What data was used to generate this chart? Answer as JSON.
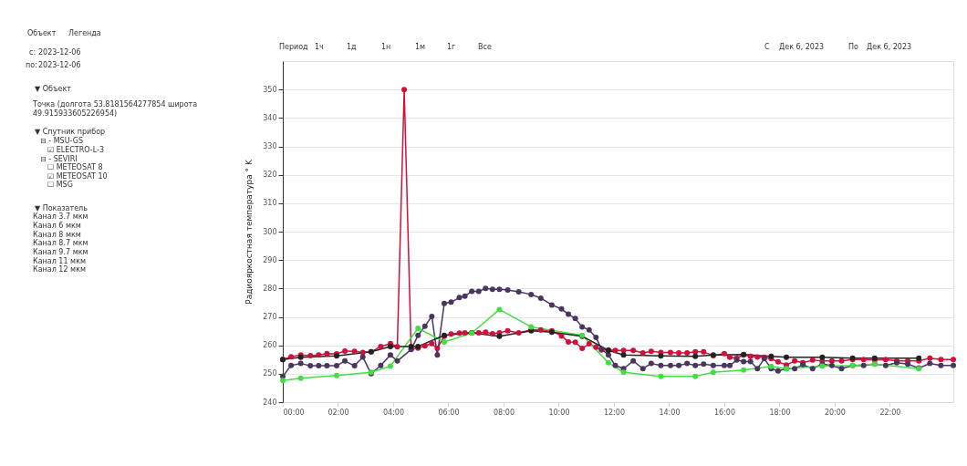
{
  "chart_data": {
    "type": "line",
    "ylabel": "Радиояркостная температура ° K",
    "xlim": [
      0,
      24.3
    ],
    "ylim": [
      240,
      360
    ],
    "xticks": [
      {
        "value": 0,
        "label": "00:00"
      },
      {
        "value": 2,
        "label": "02:00"
      },
      {
        "value": 4,
        "label": "04:00"
      },
      {
        "value": 6,
        "label": "06:00"
      },
      {
        "value": 8,
        "label": "08:00"
      },
      {
        "value": 10,
        "label": "10:00"
      },
      {
        "value": 12,
        "label": "12:00"
      },
      {
        "value": 14,
        "label": "14:00"
      },
      {
        "value": 16,
        "label": "16:00"
      },
      {
        "value": 18,
        "label": "18:00"
      },
      {
        "value": 20,
        "label": "20:00"
      },
      {
        "value": 22,
        "label": "22:00"
      }
    ],
    "yticks": [
      240,
      250,
      260,
      270,
      280,
      290,
      300,
      310,
      320,
      330,
      340,
      350
    ],
    "grid": "y",
    "marker": "circle",
    "line_style": "solid",
    "legend": false,
    "series": [
      {
        "color": "#d0103a",
        "x": [
          0,
          0.3,
          0.65,
          1.0,
          1.3,
          1.6,
          1.95,
          2.25,
          2.6,
          2.9,
          3.2,
          3.55,
          3.9,
          4.15,
          4.4,
          4.65,
          4.9,
          5.15,
          5.4,
          5.6,
          5.85,
          6.1,
          6.4,
          6.6,
          6.85,
          7.1,
          7.35,
          7.6,
          7.85,
          8.15,
          8.55,
          9.0,
          9.35,
          9.75,
          10.1,
          10.35,
          10.6,
          10.85,
          11.1,
          11.35,
          11.55,
          11.8,
          12.05,
          12.35,
          12.7,
          13.05,
          13.35,
          13.7,
          14.05,
          14.35,
          14.65,
          14.95,
          15.25,
          15.6,
          16.0,
          16.2,
          16.45,
          16.7,
          16.95,
          17.2,
          17.45,
          17.7,
          17.95,
          18.25,
          18.55,
          18.85,
          19.2,
          19.55,
          19.9,
          20.25,
          20.65,
          21.05,
          21.45,
          21.85,
          22.25,
          22.65,
          23.05,
          23.45,
          23.85,
          24.3
        ],
        "values": [
          255,
          256,
          256.6,
          256.4,
          256.6,
          257.1,
          257,
          258,
          257.9,
          257.5,
          257.7,
          259.6,
          260.6,
          259.5,
          350,
          258.7,
          259,
          259.8,
          260.6,
          258.9,
          263.2,
          264,
          264.3,
          264.4,
          264.4,
          264.4,
          264.6,
          264.1,
          264.4,
          265.1,
          264.4,
          265.4,
          265.4,
          265.1,
          263.3,
          261.2,
          261.1,
          258.9,
          260.5,
          259.3,
          258.4,
          258.4,
          258.2,
          258.2,
          258.2,
          257.3,
          257.9,
          257.5,
          257.5,
          257.3,
          257.3,
          257.7,
          257.7,
          256.4,
          257.1,
          255.8,
          255.5,
          256.6,
          256.1,
          255.9,
          255.8,
          255.3,
          254.2,
          253.1,
          254.5,
          253.9,
          254.8,
          254.5,
          254.5,
          254.5,
          255,
          255,
          254.8,
          255,
          254.5,
          254.5,
          254.5,
          255.5,
          255,
          255
        ]
      },
      {
        "color": "#4a3560",
        "x": [
          0,
          0.3,
          0.65,
          1.0,
          1.3,
          1.6,
          1.95,
          2.25,
          2.6,
          2.9,
          3.2,
          3.55,
          3.9,
          4.15,
          4.65,
          4.9,
          5.15,
          5.4,
          5.6,
          5.85,
          6.1,
          6.4,
          6.6,
          6.85,
          7.1,
          7.35,
          7.6,
          7.85,
          8.15,
          8.55,
          9.0,
          9.35,
          9.75,
          10.1,
          10.35,
          10.6,
          10.85,
          11.1,
          11.35,
          11.55,
          11.8,
          12.05,
          12.35,
          12.7,
          13.05,
          13.35,
          13.7,
          14.05,
          14.35,
          14.65,
          14.95,
          15.25,
          15.6,
          16.0,
          16.2,
          16.45,
          16.7,
          16.95,
          17.2,
          17.45,
          17.7,
          17.95,
          18.25,
          18.55,
          18.85,
          19.2,
          19.55,
          19.9,
          20.25,
          20.65,
          21.05,
          21.45,
          21.85,
          22.25,
          22.65,
          23.05,
          23.45,
          23.85,
          24.3
        ],
        "values": [
          249.1,
          252.9,
          253.6,
          252.8,
          252.8,
          252.8,
          252.8,
          254.5,
          252.8,
          255.9,
          250,
          252.9,
          256.6,
          254.5,
          258.5,
          263.5,
          266.7,
          270.2,
          256.6,
          274.7,
          275.2,
          276.8,
          277.3,
          279,
          279,
          280,
          279.7,
          279.7,
          279.5,
          278.8,
          277.9,
          276.6,
          274.2,
          272.8,
          271,
          269.4,
          266.5,
          265.4,
          262.8,
          258.7,
          256.6,
          252.9,
          251.8,
          254.5,
          251.8,
          253.6,
          252.9,
          252.9,
          252.9,
          253.6,
          252.9,
          253.4,
          252.9,
          252.9,
          252.9,
          254.8,
          254.3,
          254.3,
          251.8,
          255.3,
          251.8,
          251,
          251.8,
          251.8,
          253.2,
          251.8,
          253.4,
          252.9,
          251.8,
          252.9,
          252.9,
          253.4,
          252.9,
          253.9,
          253.4,
          252,
          253.6,
          252.9,
          252.9
        ]
      },
      {
        "color": "#44dd44",
        "x": [
          0,
          0.65,
          1.95,
          3.2,
          3.9,
          4.9,
          5.85,
          6.85,
          7.85,
          9.0,
          10.85,
          11.8,
          12.35,
          13.7,
          14.95,
          15.6,
          16.7,
          17.7,
          18.25,
          19.55,
          20.65,
          21.45,
          23.05
        ],
        "values": [
          247.6,
          248.4,
          249.4,
          250.5,
          252.7,
          266,
          261.2,
          264.3,
          272.6,
          266.5,
          263.5,
          253.9,
          250.5,
          249.1,
          249.1,
          250.5,
          251.3,
          252.6,
          251.8,
          252.7,
          252.9,
          253.4,
          251.8
        ]
      },
      {
        "color": "#222222",
        "x": [
          0,
          0.65,
          1.95,
          3.2,
          3.9,
          4.65,
          4.9,
          5.85,
          6.85,
          7.85,
          9.0,
          9.75,
          10.85,
          11.8,
          12.35,
          13.7,
          14.95,
          15.6,
          16.7,
          17.7,
          18.25,
          19.55,
          20.65,
          21.45,
          23.05
        ],
        "values": [
          255,
          255.8,
          256.3,
          257.7,
          259.6,
          259.6,
          259.6,
          263.5,
          264.4,
          263.2,
          265.1,
          264.6,
          263.2,
          258.2,
          256.6,
          256.3,
          256.1,
          256.6,
          256.8,
          256.1,
          255.8,
          255.8,
          255.5,
          255.5,
          255.5
        ]
      }
    ],
    "annotations": [
      "Объект",
      "Легенда",
      "с:",
      "2023-12-06",
      "по:",
      "2023-12-06",
      "▼ Объект",
      "Точка (долгота 53.8181564277854 широта",
      "49.915933605226954)",
      "▼ Спутник прибор",
      "⊟ - MSU-GS",
      "☑ ELECTRO-L-3",
      "⊟ - SEVIRI",
      "☐ METEOSAT 8",
      "☑ METEOSAT 10",
      "☐ MSG",
      "▼ Показатель",
      "Канал 3.7 мкм",
      "Канал 6 мкм",
      "Канал 8 мкм",
      "Канал 8.7 мкм",
      "Канал 9.7 мкм",
      "Канал 11 мкм",
      "Канал 12 мкм",
      "Период",
      "1ч",
      "1д",
      "1н",
      "1м",
      "1г",
      "Все",
      "С",
      "Дек 6, 2023",
      "По",
      "Дек 6, 2023"
    ]
  }
}
